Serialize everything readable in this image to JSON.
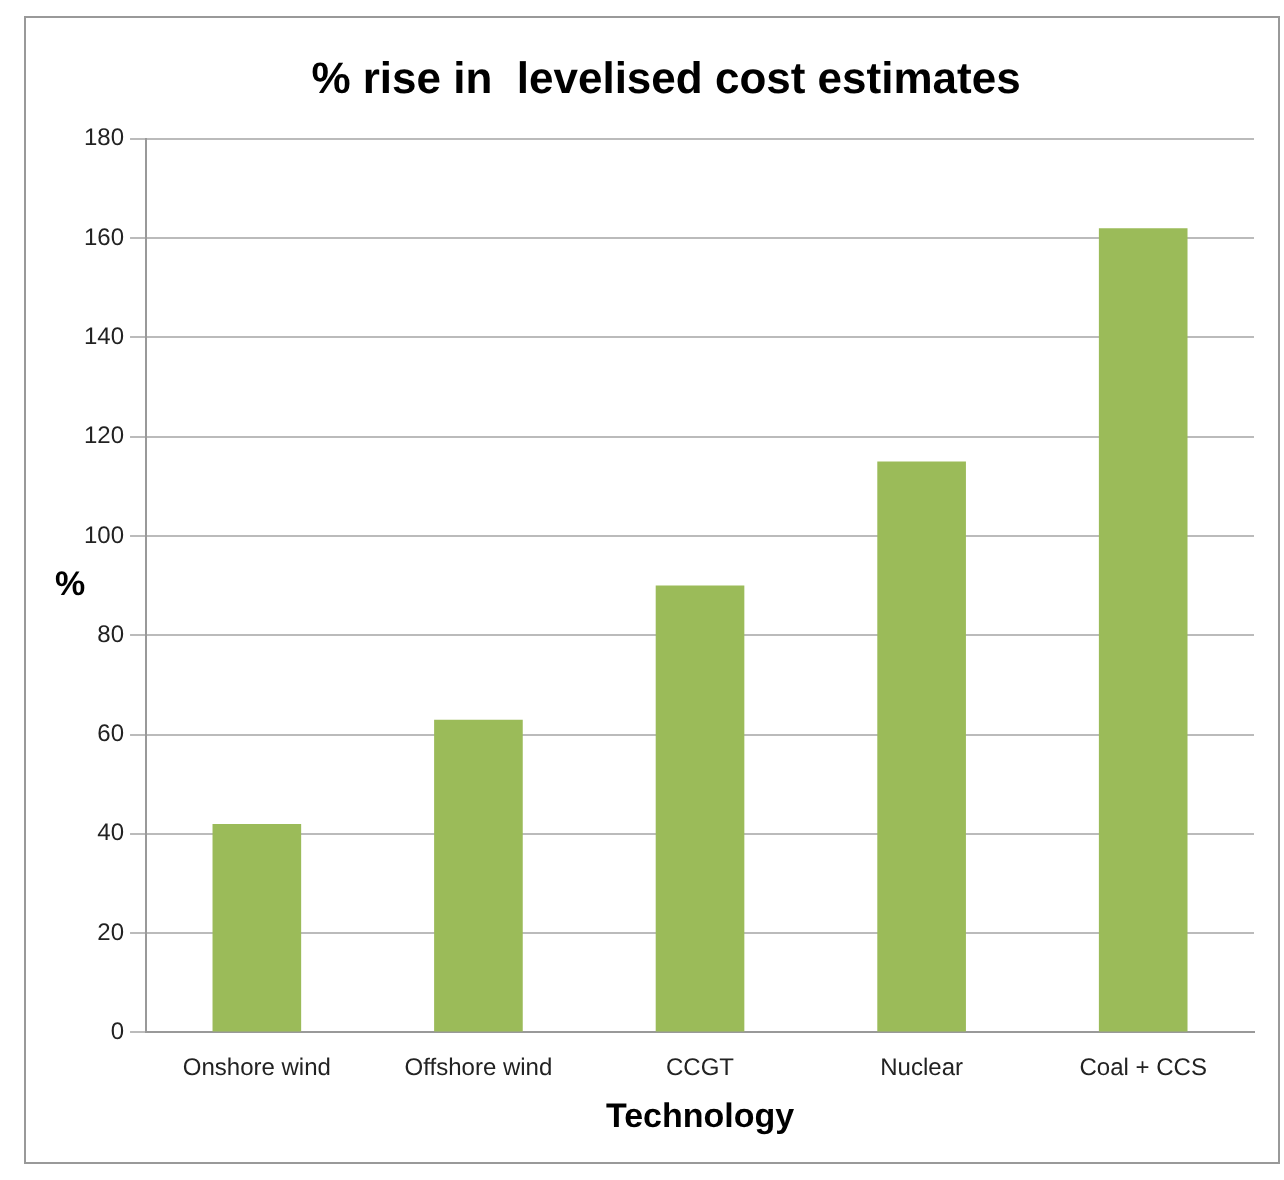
{
  "chart_data": {
    "type": "bar",
    "title": "% rise in  levelised cost estimates",
    "xlabel": "Technology",
    "ylabel": "%",
    "categories": [
      "Onshore wind",
      "Offshore wind",
      "CCGT",
      "Nuclear",
      "Coal + CCS"
    ],
    "values": [
      42,
      63,
      90,
      115,
      162
    ],
    "color": "#9bbb59",
    "ylim": [
      0,
      180
    ],
    "yticks": [
      0,
      20,
      40,
      60,
      80,
      100,
      120,
      140,
      160,
      180
    ],
    "grid": "y",
    "legend": false
  }
}
